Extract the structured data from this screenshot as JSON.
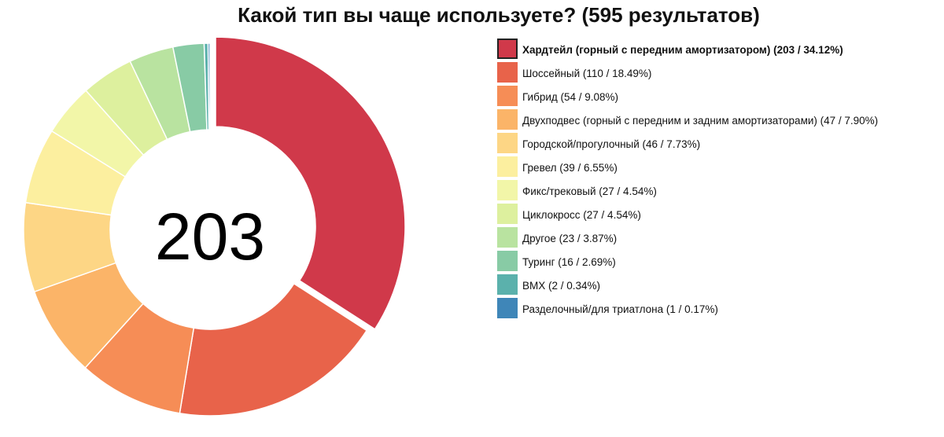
{
  "title": "Какой тип вы чаще используете? (595 результатов)",
  "center_value": "203",
  "legend_labels": [
    "Хардтейл (горный с передним амортизатором) (203 / 34.12%)",
    "Шоссейный (110 / 18.49%)",
    "Гибрид (54 / 9.08%)",
    "Двухподвес (горный с передним и задним амортизаторами) (47 / 7.90%)",
    "Городской/прогулочный (46 / 7.73%)",
    "Гревел (39 / 6.55%)",
    "Фикс/трековый (27 / 4.54%)",
    "Циклокросс (27 / 4.54%)",
    "Другое (23 / 3.87%)",
    "Туринг (16 / 2.69%)",
    "BMX (2 / 0.34%)",
    "Разделочный/для триатлона (1 / 0.17%)"
  ],
  "chart_data": {
    "type": "pie",
    "variant": "donut",
    "title": "Какой тип вы чаще используете? (595 результатов)",
    "total": 595,
    "selected_index": 0,
    "legend": "right",
    "categories": [
      "Хардтейл (горный с передним амортизатором)",
      "Шоссейный",
      "Гибрид",
      "Двухподвес (горный с передним и задним амортизаторами)",
      "Городской/прогулочный",
      "Гревел",
      "Фикс/трековый",
      "Циклокросс",
      "Другое",
      "Туринг",
      "BMX",
      "Разделочный/для триатлона"
    ],
    "values": [
      203,
      110,
      54,
      47,
      46,
      39,
      27,
      27,
      23,
      16,
      2,
      1
    ],
    "percents": [
      34.12,
      18.49,
      9.08,
      7.9,
      7.73,
      6.55,
      4.54,
      4.54,
      3.87,
      2.69,
      0.34,
      0.17
    ],
    "colors": [
      "#d0394a",
      "#e8634a",
      "#f68d56",
      "#fbb468",
      "#fdd685",
      "#fcef9f",
      "#f2f6a8",
      "#ddf09e",
      "#b9e3a0",
      "#88cba5",
      "#5bb1ac",
      "#3f86b8"
    ]
  }
}
